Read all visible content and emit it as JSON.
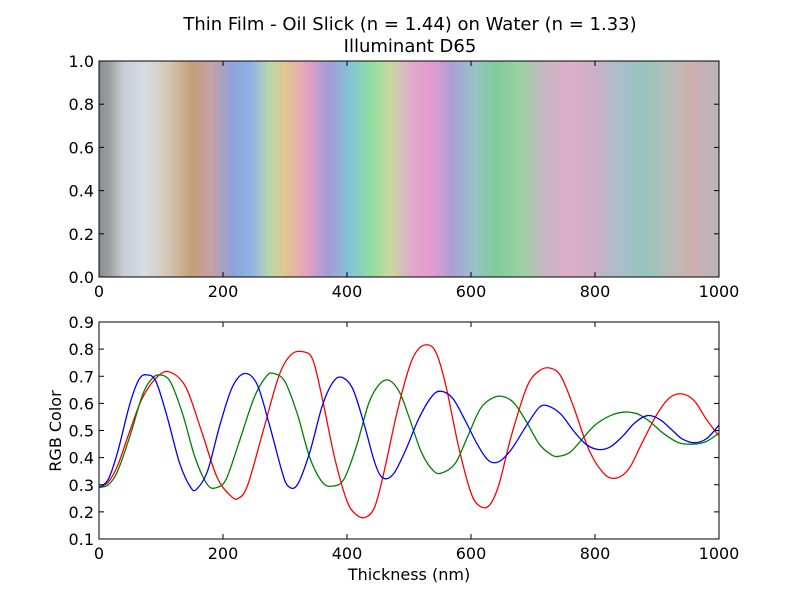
{
  "chart_data": [
    {
      "type": "heatmap",
      "title": "Thin Film - Oil Slick (n = 1.44) on Water (n = 1.33)",
      "subtitle": "Illuminant D65",
      "xlim": [
        0,
        1000
      ],
      "ylim": [
        0,
        1
      ],
      "xticks": [
        "0",
        "200",
        "400",
        "600",
        "800",
        "1000"
      ],
      "yticks": [
        "0.0",
        "0.2",
        "0.4",
        "0.6",
        "0.8",
        "1.0"
      ],
      "grid": false,
      "color_stops": [
        {
          "thickness": 0,
          "color": "#8c8d92"
        },
        {
          "thickness": 15,
          "color": "#9a9ba0"
        },
        {
          "thickness": 40,
          "color": "#c6cfd6"
        },
        {
          "thickness": 75,
          "color": "#d7dde2"
        },
        {
          "thickness": 110,
          "color": "#d5c8b8"
        },
        {
          "thickness": 150,
          "color": "#c59f78"
        },
        {
          "thickness": 180,
          "color": "#c9a0a6"
        },
        {
          "thickness": 215,
          "color": "#8ea2d9"
        },
        {
          "thickness": 245,
          "color": "#90b2e4"
        },
        {
          "thickness": 275,
          "color": "#b9d7ad"
        },
        {
          "thickness": 300,
          "color": "#e0c78a"
        },
        {
          "thickness": 335,
          "color": "#e7a2c1"
        },
        {
          "thickness": 370,
          "color": "#a49ad8"
        },
        {
          "thickness": 405,
          "color": "#83c4d9"
        },
        {
          "thickness": 440,
          "color": "#93df9e"
        },
        {
          "thickness": 470,
          "color": "#c7d9a0"
        },
        {
          "thickness": 505,
          "color": "#e0a9cd"
        },
        {
          "thickness": 535,
          "color": "#e59bd0"
        },
        {
          "thickness": 570,
          "color": "#ab9fd6"
        },
        {
          "thickness": 605,
          "color": "#98c3c6"
        },
        {
          "thickness": 640,
          "color": "#7fcc9a"
        },
        {
          "thickness": 680,
          "color": "#9bd1a3"
        },
        {
          "thickness": 720,
          "color": "#c8b6c3"
        },
        {
          "thickness": 760,
          "color": "#dfafc9"
        },
        {
          "thickness": 800,
          "color": "#ccaec5"
        },
        {
          "thickness": 840,
          "color": "#a8bec9"
        },
        {
          "thickness": 880,
          "color": "#97c4c0"
        },
        {
          "thickness": 920,
          "color": "#b5bfb6"
        },
        {
          "thickness": 955,
          "color": "#cfafae"
        },
        {
          "thickness": 1000,
          "color": "#b8b6b9"
        }
      ]
    },
    {
      "type": "line",
      "xlabel": "Thickness (nm)",
      "ylabel": "RGB Color",
      "xlim": [
        0,
        1000
      ],
      "ylim": [
        0.1,
        0.9
      ],
      "xticks": [
        "0",
        "200",
        "400",
        "600",
        "800",
        "1000"
      ],
      "yticks": [
        "0.1",
        "0.2",
        "0.3",
        "0.4",
        "0.5",
        "0.6",
        "0.7",
        "0.8",
        "0.9"
      ],
      "grid": false,
      "series": [
        {
          "color": "#ff0000",
          "x": [
            0,
            15,
            30,
            50,
            70,
            95,
            115,
            140,
            165,
            190,
            212,
            225,
            240,
            265,
            290,
            310,
            330,
            345,
            360,
            380,
            400,
            415,
            430,
            445,
            460,
            480,
            500,
            515,
            532,
            545,
            560,
            580,
            600,
            615,
            630,
            645,
            665,
            690,
            710,
            728,
            745,
            765,
            790,
            815,
            835,
            855,
            875,
            900,
            920,
            940,
            960,
            980,
            1000
          ],
          "y": [
            0.29,
            0.31,
            0.37,
            0.5,
            0.62,
            0.7,
            0.715,
            0.66,
            0.5,
            0.33,
            0.26,
            0.25,
            0.3,
            0.5,
            0.7,
            0.78,
            0.79,
            0.76,
            0.62,
            0.4,
            0.24,
            0.19,
            0.18,
            0.22,
            0.35,
            0.56,
            0.73,
            0.8,
            0.815,
            0.78,
            0.66,
            0.44,
            0.27,
            0.22,
            0.225,
            0.3,
            0.48,
            0.66,
            0.72,
            0.73,
            0.7,
            0.59,
            0.43,
            0.34,
            0.325,
            0.36,
            0.45,
            0.56,
            0.62,
            0.635,
            0.61,
            0.54,
            0.48
          ]
        },
        {
          "color": "#008000",
          "x": [
            0,
            15,
            30,
            50,
            70,
            85,
            98,
            115,
            135,
            155,
            175,
            190,
            205,
            225,
            250,
            270,
            282,
            300,
            320,
            340,
            360,
            377,
            395,
            415,
            435,
            452,
            468,
            485,
            500,
            520,
            540,
            555,
            575,
            595,
            615,
            635,
            652,
            670,
            690,
            710,
            730,
            742,
            760,
            780,
            800,
            825,
            848,
            870,
            890,
            910,
            935,
            960,
            980,
            1000
          ],
          "y": [
            0.29,
            0.3,
            0.35,
            0.48,
            0.63,
            0.69,
            0.705,
            0.68,
            0.56,
            0.4,
            0.3,
            0.29,
            0.32,
            0.45,
            0.62,
            0.7,
            0.71,
            0.68,
            0.56,
            0.4,
            0.31,
            0.295,
            0.32,
            0.44,
            0.6,
            0.67,
            0.685,
            0.64,
            0.55,
            0.42,
            0.35,
            0.345,
            0.38,
            0.48,
            0.58,
            0.62,
            0.625,
            0.6,
            0.53,
            0.45,
            0.41,
            0.405,
            0.42,
            0.47,
            0.52,
            0.555,
            0.568,
            0.56,
            0.53,
            0.49,
            0.455,
            0.45,
            0.46,
            0.49
          ]
        },
        {
          "color": "#0000ff",
          "x": [
            0,
            15,
            30,
            50,
            65,
            78,
            92,
            110,
            130,
            148,
            158,
            175,
            195,
            215,
            235,
            255,
            275,
            295,
            305,
            320,
            340,
            360,
            378,
            393,
            410,
            428,
            445,
            458,
            475,
            495,
            515,
            535,
            550,
            570,
            590,
            610,
            628,
            645,
            665,
            690,
            710,
            725,
            745,
            765,
            785,
            805,
            825,
            845,
            865,
            885,
            905,
            925,
            940,
            960,
            980,
            1000
          ],
          "y": [
            0.29,
            0.32,
            0.42,
            0.6,
            0.69,
            0.705,
            0.68,
            0.55,
            0.38,
            0.29,
            0.285,
            0.35,
            0.52,
            0.66,
            0.71,
            0.67,
            0.52,
            0.35,
            0.295,
            0.3,
            0.42,
            0.59,
            0.68,
            0.695,
            0.65,
            0.52,
            0.38,
            0.325,
            0.34,
            0.43,
            0.54,
            0.62,
            0.645,
            0.62,
            0.54,
            0.45,
            0.39,
            0.385,
            0.43,
            0.52,
            0.585,
            0.59,
            0.56,
            0.5,
            0.45,
            0.43,
            0.44,
            0.48,
            0.53,
            0.555,
            0.54,
            0.5,
            0.47,
            0.455,
            0.47,
            0.52
          ]
        }
      ]
    }
  ]
}
